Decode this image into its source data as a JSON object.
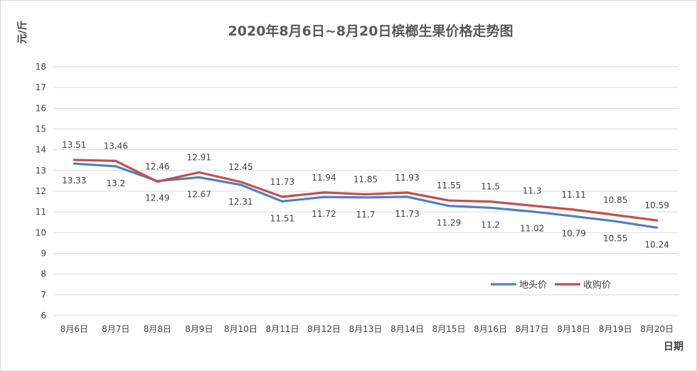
{
  "chart_data": {
    "type": "line",
    "title": "2020年8月6日~8月20日槟榔生果价格走势图",
    "ylabel": "元/斤",
    "xlabel": "日期",
    "ylim": [
      6,
      18
    ],
    "yticks": [
      6,
      7,
      8,
      9,
      10,
      11,
      12,
      13,
      14,
      15,
      16,
      17,
      18
    ],
    "grid": true,
    "legend_position": "bottom-right",
    "categories": [
      "8月6日",
      "8月7日",
      "8月8日",
      "8月9日",
      "8月10日",
      "8月11日",
      "8月12日",
      "8月13日",
      "8月14日",
      "8月15日",
      "8月16日",
      "8月17日",
      "8月18日",
      "8月19日",
      "8月20日"
    ],
    "series": [
      {
        "name": "地头价",
        "color": "#4f81bd",
        "values": [
          13.33,
          13.2,
          12.49,
          12.67,
          12.31,
          11.51,
          11.72,
          11.7,
          11.73,
          11.29,
          11.2,
          11.02,
          10.79,
          10.55,
          10.24
        ],
        "labels": [
          "13.33",
          "13.2",
          "12.49",
          "12.67",
          "12.31",
          "11.51",
          "11.72",
          "11.7",
          "11.73",
          "11.29",
          "11.2",
          "11.02",
          "10.79",
          "10.55",
          "10.24"
        ],
        "label_side": "below"
      },
      {
        "name": "收购价",
        "color": "#c0504d",
        "values": [
          13.51,
          13.46,
          12.46,
          12.91,
          12.45,
          11.73,
          11.94,
          11.85,
          11.93,
          11.55,
          11.5,
          11.3,
          11.11,
          10.85,
          10.59
        ],
        "labels": [
          "13.51",
          "13.46",
          "12.46",
          "12.91",
          "12.45",
          "11.73",
          "11.94",
          "11.85",
          "11.93",
          "11.55",
          "11.5",
          "11.3",
          "11.11",
          "10.85",
          "10.59"
        ],
        "label_side": "above"
      }
    ]
  }
}
